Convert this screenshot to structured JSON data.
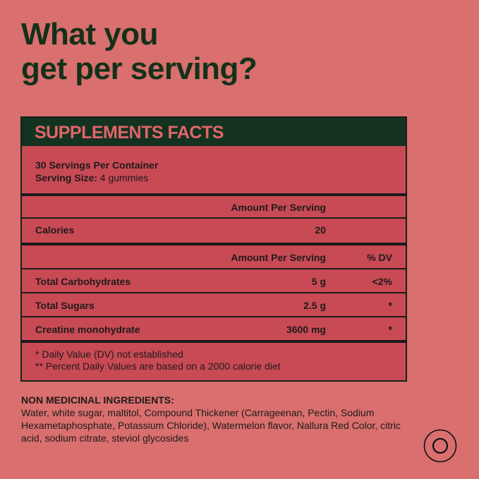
{
  "headline": {
    "line1": "What you",
    "line2": "get per serving?"
  },
  "facts": {
    "title": "SUPPLEMENTS FACTS",
    "servings_per_container": "30 Servings Per Container",
    "serving_size_label": "Serving Size:",
    "serving_size_value": " 4 gummies",
    "amount_header_1": "Amount Per Serving",
    "calories_label": "Calories",
    "calories_value": "20",
    "amount_header_2": "Amount Per Serving",
    "dv_header": "% DV",
    "nutrients": [
      {
        "label": "Total Carbohydrates",
        "amount": "5 g",
        "dv": "<2%"
      },
      {
        "label": "Total Sugars",
        "amount": "2.5 g",
        "dv": "*"
      },
      {
        "label": "Creatine monohydrate",
        "amount": "3600 mg",
        "dv": "*"
      }
    ],
    "footnote_1": "* Daily Value (DV) not established",
    "footnote_2": "** Percent Daily Values are based on a 2000 calorie diet"
  },
  "ingredients": {
    "title": "NON MEDICINAL INGREDIENTS:",
    "text": "Water, white sugar, maltitol, Compound Thickener (Carrageenan, Pectin, Sodium Hexametaphosphate, Potassium Chloride), Watermelon flavor, Nallura Red Color, citric acid, sodium citrate, steviol glycosides"
  },
  "icons": {
    "badge": "concentric-circle-icon"
  },
  "colors": {
    "background": "#d96f6e",
    "panel": "#c84a55",
    "header": "#143220",
    "header_text": "#e0656a",
    "headline": "#133119"
  }
}
